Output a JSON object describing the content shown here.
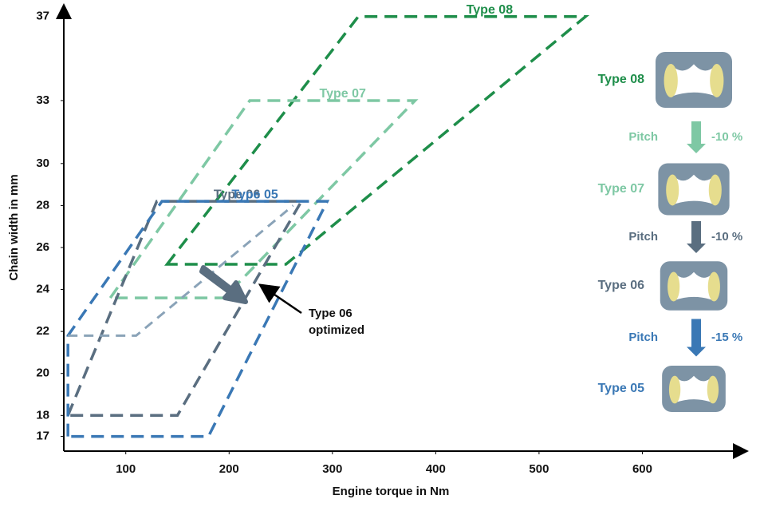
{
  "chart_data": {
    "type": "region",
    "x_label": "Engine torque in Nm",
    "y_label": "Chain width in mm",
    "xlim": [
      40,
      700
    ],
    "ylim": [
      16.3,
      37.6
    ],
    "xticks": [
      100,
      200,
      300,
      400,
      500,
      600
    ],
    "yticks": [
      17,
      18,
      20,
      22,
      24,
      26,
      28,
      30,
      33,
      37
    ],
    "series": [
      {
        "name": "Type 08",
        "color": "#1e8e4a",
        "closed": true,
        "x": [
          140,
          325,
          545,
          255
        ],
        "y": [
          25.2,
          37,
          37,
          25.2
        ]
      },
      {
        "name": "Type 07",
        "color": "#7ec8a4",
        "closed": true,
        "x": [
          85,
          220,
          380,
          195
        ],
        "y": [
          23.6,
          33,
          33,
          23.6
        ]
      },
      {
        "name": "Type 06",
        "color": "#5a6e80",
        "closed": true,
        "x": [
          44,
          130,
          270,
          150
        ],
        "y": [
          18,
          28.2,
          28.2,
          18
        ]
      },
      {
        "name": "Type 05",
        "color": "#3a78b5",
        "closed": true,
        "x": [
          44,
          44,
          135,
          295,
          180
        ],
        "y": [
          17,
          21.8,
          28.2,
          28.2,
          17
        ]
      }
    ],
    "optimized": {
      "color": "#8aa3b8",
      "x": [
        44,
        110,
        262
      ],
      "y": [
        21.8,
        21.8,
        28
      ],
      "label": [
        "Type 06",
        "optimized"
      ]
    },
    "steps": {
      "labels": [
        "Type 08",
        "Type 07",
        "Type 06",
        "Type 05"
      ],
      "colors": [
        "#1e8e4a",
        "#7ec8a4",
        "#5a6e80",
        "#3a78b5"
      ]
    },
    "transitions": {
      "labels": [
        "Pitch",
        "Pitch",
        "Pitch"
      ],
      "values": [
        -10,
        -10,
        -15
      ],
      "value_labels": [
        "-10 %",
        "-10 %",
        "-15 %"
      ],
      "colors": [
        "#7ec8a4",
        "#5a6e80",
        "#3a78b5"
      ]
    }
  }
}
